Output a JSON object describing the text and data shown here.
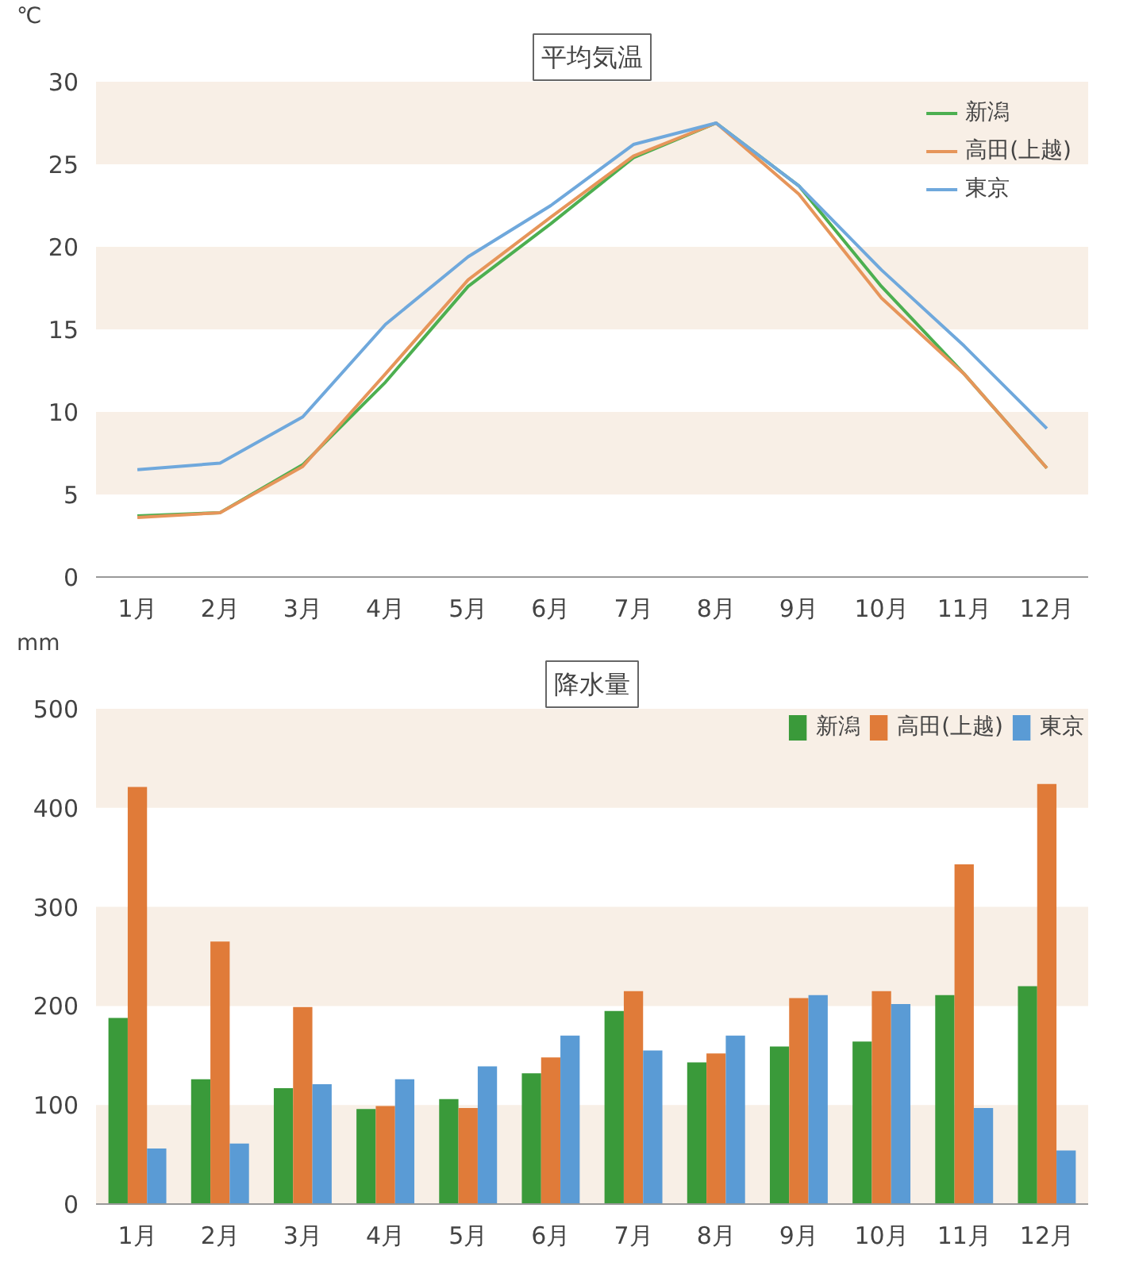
{
  "chart_data": [
    {
      "type": "line",
      "title": "平均気温",
      "ylabel": "℃",
      "categories": [
        "1月",
        "2月",
        "3月",
        "4月",
        "5月",
        "6月",
        "7月",
        "8月",
        "9月",
        "10月",
        "11月",
        "12月"
      ],
      "series": [
        {
          "name": "新潟",
          "color": "#4caf50",
          "values": [
            3.7,
            3.9,
            6.8,
            11.8,
            17.6,
            21.4,
            25.4,
            27.5,
            23.7,
            17.6,
            12.3,
            6.6
          ]
        },
        {
          "name": "高田(上越)",
          "color": "#e6955a",
          "values": [
            3.6,
            3.9,
            6.7,
            12.3,
            18.0,
            21.8,
            25.5,
            27.5,
            23.2,
            16.9,
            12.3,
            6.6
          ]
        },
        {
          "name": "東京",
          "color": "#6fa8dc",
          "values": [
            6.5,
            6.9,
            9.7,
            15.3,
            19.4,
            22.5,
            26.2,
            27.5,
            23.7,
            18.6,
            14.0,
            9.0
          ]
        }
      ],
      "ylim": [
        0,
        30
      ],
      "yticks": [
        0,
        5,
        10,
        15,
        20,
        25,
        30
      ],
      "grid": false,
      "legend": "top right",
      "marker": "none",
      "line_style": "solid",
      "bands": [
        {
          "axis": "y",
          "from": 5,
          "to": 10,
          "color": "#f8efe6"
        },
        {
          "axis": "y",
          "from": 15,
          "to": 20,
          "color": "#f8efe6"
        },
        {
          "axis": "y",
          "from": 25,
          "to": 30,
          "color": "#f8efe6"
        }
      ]
    },
    {
      "type": "bar",
      "title": "降水量",
      "ylabel": "mm",
      "categories": [
        "1月",
        "2月",
        "3月",
        "4月",
        "5月",
        "6月",
        "7月",
        "8月",
        "9月",
        "10月",
        "11月",
        "12月"
      ],
      "series": [
        {
          "name": "新潟",
          "color": "#3a9a3a",
          "values": [
            188,
            126,
            117,
            96,
            106,
            132,
            195,
            143,
            159,
            164,
            211,
            220
          ]
        },
        {
          "name": "高田(上越)",
          "color": "#e07b39",
          "values": [
            421,
            265,
            199,
            99,
            97,
            148,
            215,
            152,
            208,
            215,
            343,
            424
          ]
        },
        {
          "name": "東京",
          "color": "#5a9bd5",
          "values": [
            56,
            61,
            121,
            126,
            139,
            170,
            155,
            170,
            211,
            202,
            97,
            54
          ]
        }
      ],
      "ylim": [
        0,
        500
      ],
      "yticks": [
        0,
        100,
        200,
        300,
        400,
        500
      ],
      "grid": false,
      "legend": "top right",
      "bands": [
        {
          "axis": "y",
          "from": 0,
          "to": 100,
          "color": "#f8efe6"
        },
        {
          "axis": "y",
          "from": 200,
          "to": 300,
          "color": "#f8efe6"
        },
        {
          "axis": "y",
          "from": 400,
          "to": 500,
          "color": "#f8efe6"
        }
      ]
    }
  ]
}
